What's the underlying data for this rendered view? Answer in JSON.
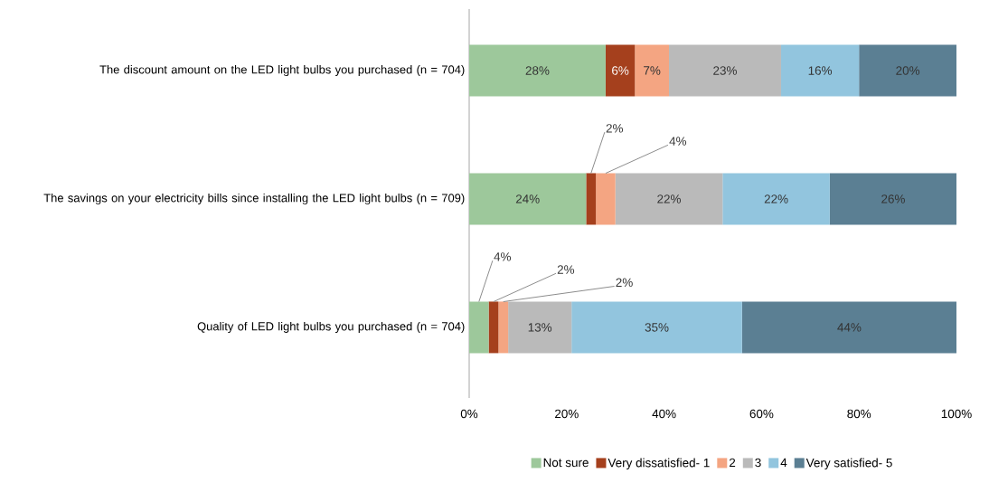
{
  "chart_data": {
    "type": "bar",
    "orientation": "horizontal",
    "stacked": true,
    "legend": "bottom",
    "categories": [
      "The discount amount on the LED light bulbs you purchased (n = 704)",
      "The savings on your electricity bills since installing the LED light bulbs (n = 709)",
      "Quality of LED light bulbs you purchased (n = 704)"
    ],
    "xlim": [
      0,
      100
    ],
    "xticks": [
      {
        "value": 0,
        "label": "0%"
      },
      {
        "value": 20,
        "label": "20%"
      },
      {
        "value": 40,
        "label": "40%"
      },
      {
        "value": 60,
        "label": "60%"
      },
      {
        "value": 80,
        "label": "80%"
      },
      {
        "value": 100,
        "label": "100%"
      }
    ],
    "series": [
      {
        "name": "Not sure",
        "color": "#9dc89b",
        "values": [
          28,
          24,
          4
        ],
        "value_labels": [
          "28%",
          "24%",
          "4%"
        ]
      },
      {
        "name": "Very dissatisfied- 1",
        "color": "#a5401d",
        "values": [
          6,
          2,
          2
        ],
        "value_labels": [
          "6%",
          "2%",
          "2%"
        ]
      },
      {
        "name": "2",
        "color": "#f4a582",
        "values": [
          7,
          4,
          2
        ],
        "value_labels": [
          "7%",
          "4%",
          "2%"
        ]
      },
      {
        "name": "3",
        "color": "#bababa",
        "values": [
          23,
          22,
          13
        ],
        "value_labels": [
          "23%",
          "22%",
          "13%"
        ]
      },
      {
        "name": "4",
        "color": "#92c5de",
        "values": [
          16,
          22,
          35
        ],
        "value_labels": [
          "16%",
          "22%",
          "35%"
        ]
      },
      {
        "name": "Very satisfied- 5",
        "color": "#5b7f93",
        "values": [
          20,
          26,
          44
        ],
        "value_labels": [
          "20%",
          "26%",
          "44%"
        ]
      }
    ]
  }
}
